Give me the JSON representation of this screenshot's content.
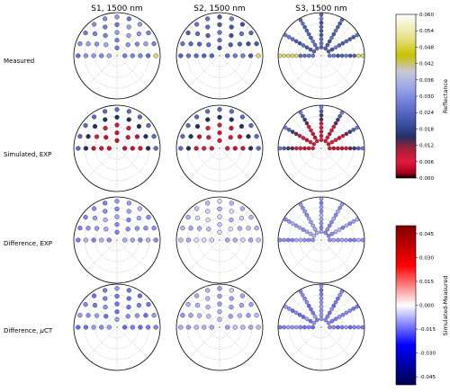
{
  "chart_data": {
    "type": "polar-scatter-grid",
    "columns": [
      "S1, 1500 nm",
      "S2, 1500 nm",
      "S3, 1500 nm"
    ],
    "rows": [
      "Measured",
      "Simulated, EXP",
      "Difference, EXP",
      "Difference, $\\mu$CT"
    ],
    "colorbars": [
      {
        "label": "Reflectance",
        "range": [
          0.0,
          0.06
        ],
        "ticks": [
          "0.000",
          "0.006",
          "0.012",
          "0.018",
          "0.024",
          "0.030",
          "0.036",
          "0.042",
          "0.048",
          "0.054",
          "0.060"
        ],
        "colormap": "gist_stern-like: red (0) to blue (0.02-0.03) to olive/yellow (0.05) to white (0.06)"
      },
      {
        "label": "Simulated-Measured",
        "range": [
          -0.05,
          0.05
        ],
        "ticks": [
          "-0.045",
          "-0.030",
          "-0.015",
          "0.000",
          "0.015",
          "0.030",
          "0.045"
        ],
        "colormap": "seismic: dark blue (-0.05) to white (0) to dark red (0.05)"
      }
    ],
    "panel_summaries": [
      {
        "row": "Measured",
        "column": "S1, 1500 nm",
        "typical_value": 0.03,
        "notes": "mostly blue markers, olive/yellow (~0.05) markers at left"
      },
      {
        "row": "Measured",
        "column": "S2, 1500 nm",
        "typical_value": 0.024,
        "notes": "blue to dark blue markers, olive marker at left edge"
      },
      {
        "row": "Measured",
        "column": "S3, 1500 nm",
        "typical_value": 0.024,
        "notes": "radial spokes of blue markers, olive/yellow along left horizontal"
      },
      {
        "row": "Simulated, EXP",
        "column": "S1, 1500 nm",
        "typical_value": 0.006,
        "notes": "red near center (~0.005), blue at outer ring, olive marker at left"
      },
      {
        "row": "Simulated, EXP",
        "column": "S2, 1500 nm",
        "typical_value": 0.006,
        "notes": "red arcs near center, purple/blue outward"
      },
      {
        "row": "Simulated, EXP",
        "column": "S3, 1500 nm",
        "typical_value": 0.006,
        "notes": "radial spokes mostly red, blue at outer ends"
      },
      {
        "row": "Difference, EXP",
        "column": "S1, 1500 nm",
        "typical_value": -0.01,
        "notes": "light blue markers"
      },
      {
        "row": "Difference, EXP",
        "column": "S2, 1500 nm",
        "typical_value": -0.006,
        "notes": "very light blue / near white markers"
      },
      {
        "row": "Difference, EXP",
        "column": "S3, 1500 nm",
        "typical_value": -0.01,
        "notes": "light blue spokes, near white along horizontal"
      },
      {
        "row": "Difference, $\\mu$CT",
        "column": "S1, 1500 nm",
        "typical_value": -0.012,
        "notes": "light to medium blue markers"
      },
      {
        "row": "Difference, $\\mu$CT",
        "column": "S2, 1500 nm",
        "typical_value": -0.008,
        "notes": "light blue / lavender markers"
      },
      {
        "row": "Difference, $\\mu$CT",
        "column": "S3, 1500 nm",
        "typical_value": -0.012,
        "notes": "light blue spokes, blue along horizontal"
      }
    ],
    "grid": true
  }
}
